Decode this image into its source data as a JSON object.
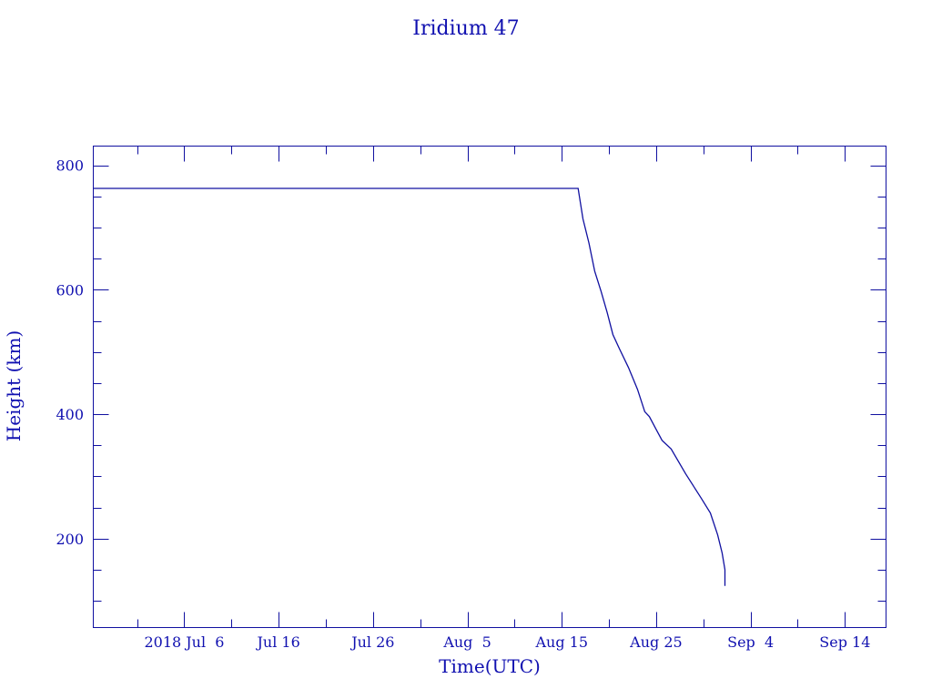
{
  "chart_data": {
    "type": "line",
    "title": "Iridium 47",
    "xlabel": "Time(UTC)",
    "ylabel": "Height (km)",
    "color": "#1010a0",
    "xlim": [
      "2018-06-26T08:40Z",
      "2018-09-18T08:30Z"
    ],
    "ylim": [
      57,
      831
    ],
    "grid": false,
    "x_ticks": [
      {
        "date": "2018-07-06T00:00Z",
        "label": "2018 Jul  6"
      },
      {
        "date": "2018-07-16T00:00Z",
        "label": "Jul 16"
      },
      {
        "date": "2018-07-26T00:00Z",
        "label": "Jul 26"
      },
      {
        "date": "2018-08-05T00:00Z",
        "label": "Aug  5"
      },
      {
        "date": "2018-08-15T00:00Z",
        "label": "Aug 15"
      },
      {
        "date": "2018-08-25T00:00Z",
        "label": "Aug 25"
      },
      {
        "date": "2018-09-04T00:00Z",
        "label": "Sep  4"
      },
      {
        "date": "2018-09-14T00:00Z",
        "label": "Sep 14"
      }
    ],
    "x_minor_step_days": 5,
    "y_ticks": [
      200,
      400,
      600,
      800
    ],
    "y_minor_step": 50,
    "series": [
      {
        "x": [
          "2018-06-26T08:40Z",
          "2018-08-16T17:30Z",
          "2018-08-17T05:45Z",
          "2018-08-17T21:00Z",
          "2018-08-18T11:45Z",
          "2018-08-19T04:00Z",
          "2018-08-19T19:30Z",
          "2018-08-20T10:00Z",
          "2018-08-21T02:00Z",
          "2018-08-22T01:30Z",
          "2018-08-23T00:30Z",
          "2018-08-23T19:00Z",
          "2018-08-24T06:45Z",
          "2018-08-24T22:45Z",
          "2018-08-25T15:00Z",
          "2018-08-26T14:00Z",
          "2018-08-28T03:00Z",
          "2018-08-29T18:30Z",
          "2018-08-30T17:45Z",
          "2018-08-31T12:15Z",
          "2018-08-31T23:45Z",
          "2018-09-01T06:45Z",
          "2018-09-01T06:45Z"
        ],
        "y": [
          763,
          763,
          714,
          675,
          630,
          597,
          563,
          528,
          506,
          475,
          440,
          404,
          396,
          377,
          358,
          344,
          304,
          265,
          241,
          206,
          177,
          150,
          124
        ]
      }
    ]
  }
}
